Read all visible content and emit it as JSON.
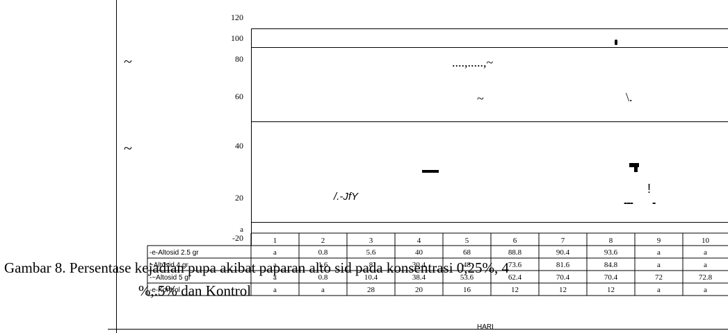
{
  "chart_data": {
    "type": "table",
    "title": "",
    "xlabel": "HARI",
    "ylabel": "",
    "ylim": [
      -20,
      120
    ],
    "y_ticks": [
      "120",
      "100",
      "80",
      "60",
      "40",
      "20",
      "-20"
    ],
    "y_tick_extra": "a",
    "categories": [
      "1",
      "2",
      "3",
      "4",
      "5",
      "6",
      "7",
      "8",
      "9",
      "10"
    ],
    "series": [
      {
        "name": "-e-Altosid 2.5 gr",
        "values": [
          "a",
          "0.8",
          "5.6",
          "40",
          "68",
          "88.8",
          "90.4",
          "93.6",
          "a",
          "a"
        ]
      },
      {
        "name": "~Altosid 4 gr",
        "values": [
          "a",
          "1.6",
          "8",
          "30.4",
          "48",
          "73.6",
          "81.6",
          "84.8",
          "a",
          "a"
        ]
      },
      {
        "name": "-~Altosid 5 gr",
        "values": [
          "a",
          "0.8",
          "10.4",
          "38.4",
          "53.6",
          "62.4",
          "70.4",
          "70.4",
          "72",
          "72.8"
        ]
      },
      {
        "name": "-e-Kontrol",
        "values": [
          "a",
          "a",
          "28",
          "20",
          "16",
          "12",
          "12",
          "12",
          "a",
          "a"
        ]
      }
    ],
    "artifacts": [
      {
        "id": "a1",
        "text": "~"
      },
      {
        "id": "a2",
        "text": "~"
      },
      {
        "id": "a3",
        "text": "....,.....,~"
      },
      {
        "id": "a4",
        "text": "~"
      },
      {
        "id": "a5",
        "text": "\\."
      },
      {
        "id": "a6",
        "text": "/.-JfY"
      },
      {
        "id": "a7",
        "text": "!"
      },
      {
        "id": "a8",
        "text": "---"
      },
      {
        "id": "a9",
        "text": "-"
      }
    ]
  },
  "caption": {
    "line1": "Gambar 8. Persentase kejadian pupa akibat paparan alto sid pada konsentrasi 0,25%, 4",
    "line2": "%,.5% dan Kontrol"
  }
}
